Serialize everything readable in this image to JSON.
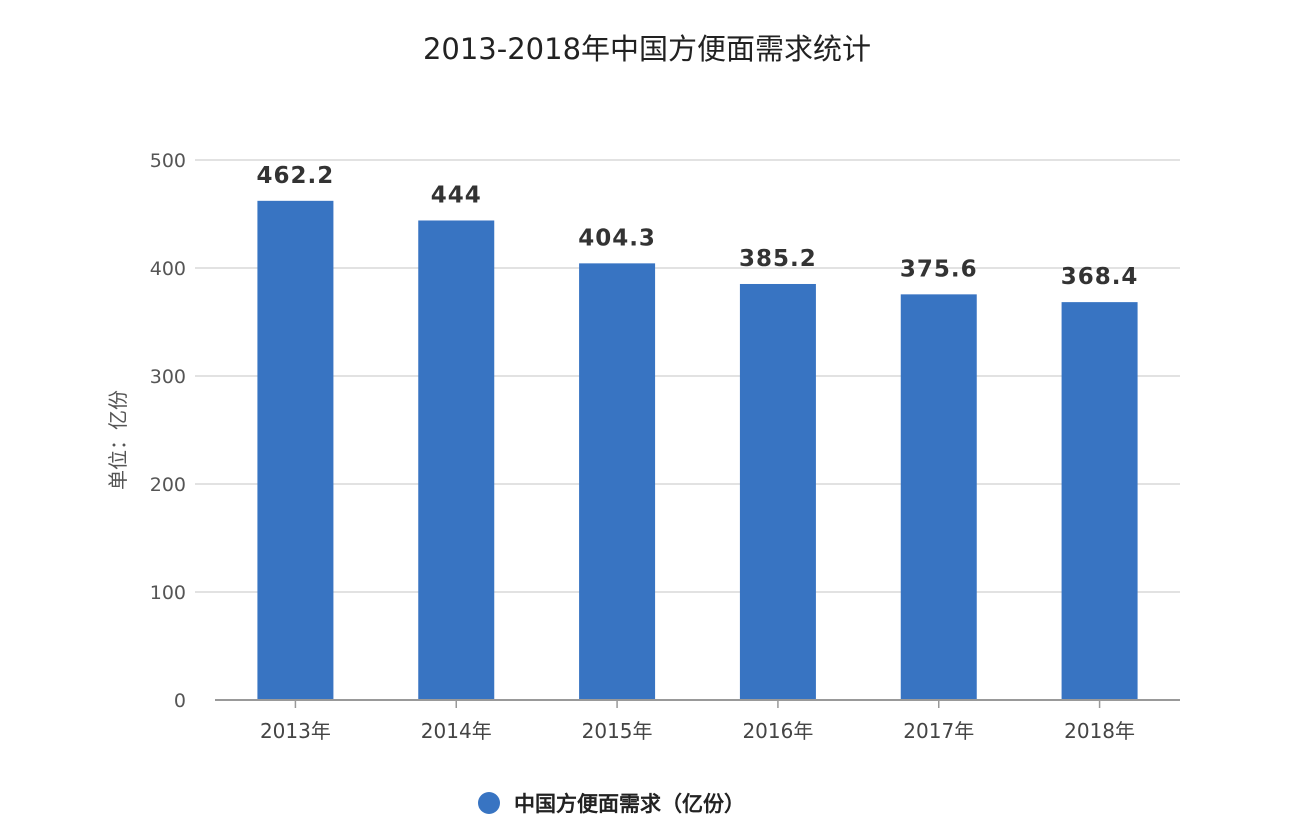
{
  "chart_data": {
    "type": "bar",
    "title": "2013-2018年中国方便面需求统计",
    "ylabel": "单位：亿份",
    "xlabel": "",
    "categories": [
      "2013年",
      "2014年",
      "2015年",
      "2016年",
      "2017年",
      "2018年"
    ],
    "series": [
      {
        "name": "中国方便面需求（亿份）",
        "values": [
          462.2,
          444,
          404.3,
          385.2,
          375.6,
          368.4
        ],
        "labels": [
          "462.2",
          "444",
          "404.3",
          "385.2",
          "375.6",
          "368.4"
        ]
      }
    ],
    "ylim": [
      0,
      500
    ],
    "yticks": [
      "0",
      "100",
      "200",
      "300",
      "400",
      "500"
    ],
    "grid": true,
    "legend_position": "bottom",
    "bar_color": "#3874c2"
  }
}
